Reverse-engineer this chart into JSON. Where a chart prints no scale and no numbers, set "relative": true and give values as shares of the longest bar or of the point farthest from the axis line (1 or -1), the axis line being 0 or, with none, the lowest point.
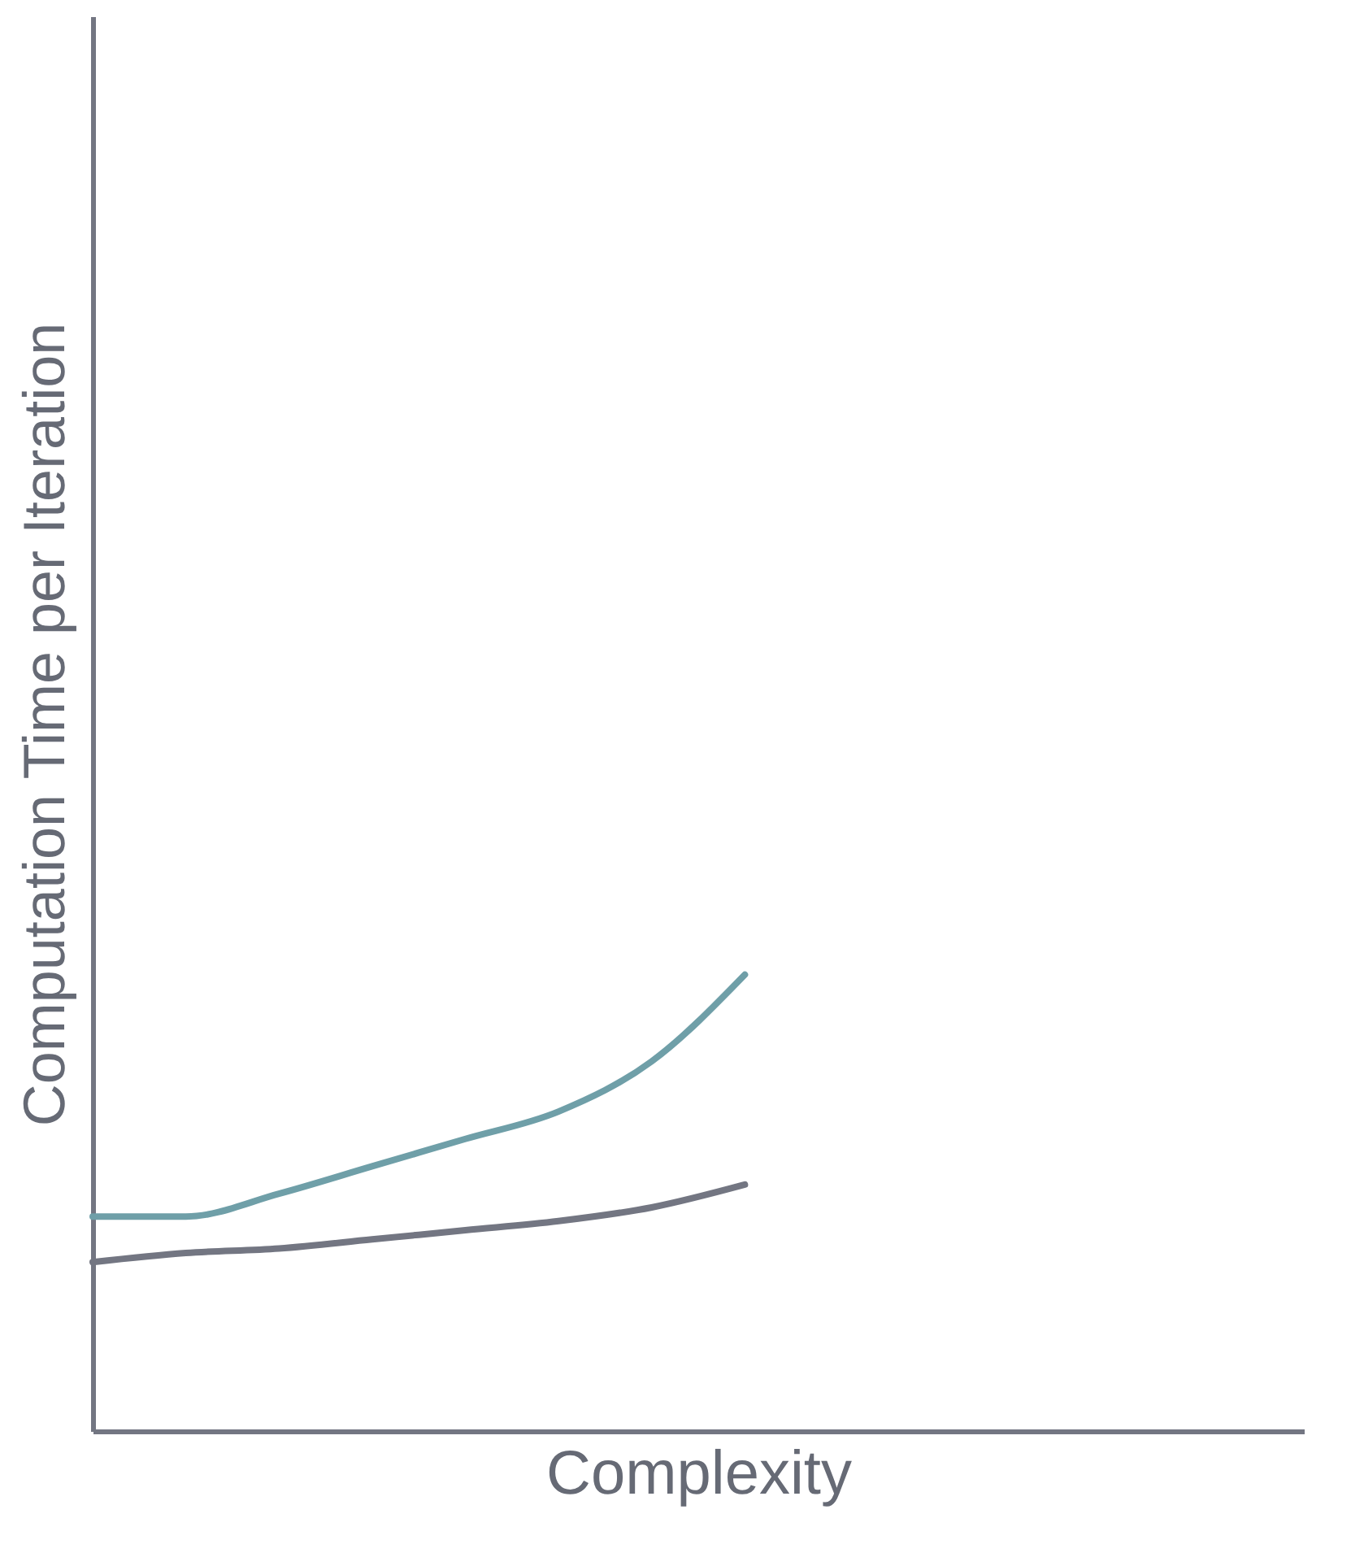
{
  "chart_data": {
    "type": "line",
    "relative": true,
    "xlabel": "Complexity",
    "ylabel": "Computation Time per Iteration",
    "categories": [
      null,
      null,
      null,
      null,
      null,
      null,
      null,
      null,
      null,
      null,
      null,
      null,
      null,
      null
    ],
    "series": [
      {
        "color": "#6f9fa8",
        "values": [
          0.47,
          0.47,
          0.52,
          0.58,
          0.64,
          0.7,
          0.81,
          1,
          null,
          null,
          null,
          null,
          null,
          null
        ]
      },
      {
        "color": "#737682",
        "values": [
          0.37,
          0.39,
          0.4,
          0.42,
          0.44,
          0.46,
          0.49,
          0.54,
          null,
          null,
          null,
          null,
          null,
          null
        ]
      }
    ],
    "grid": false,
    "marker": "none",
    "line_style": "solid"
  }
}
